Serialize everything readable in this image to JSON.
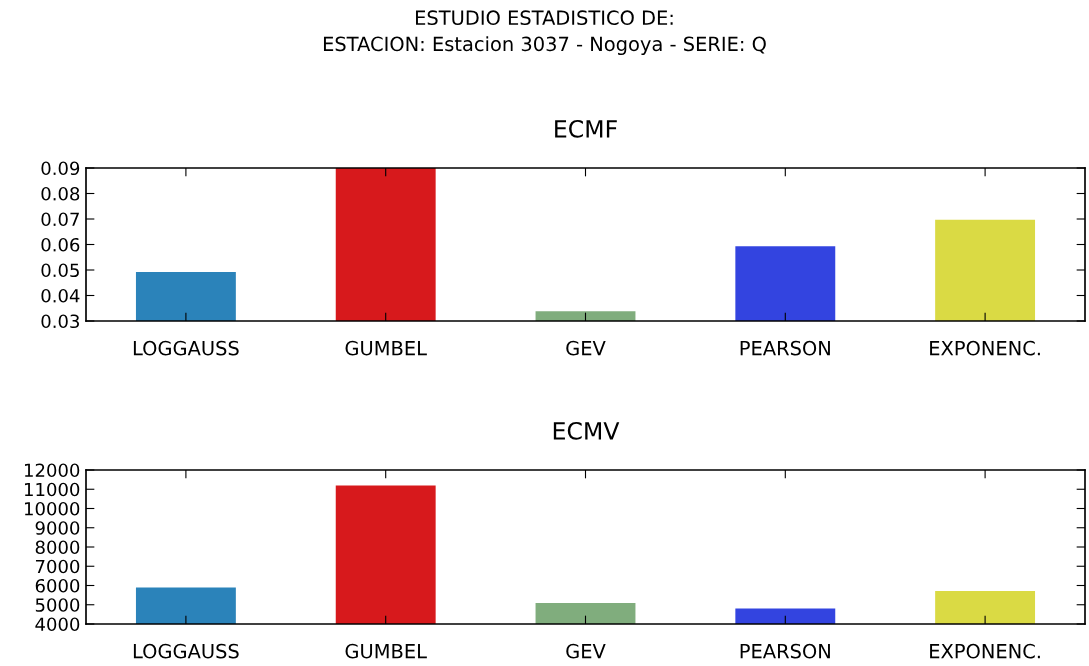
{
  "chart_data": [
    {
      "type": "bar",
      "title": "ECMF",
      "categories": [
        "LOGGAUSS",
        "GUMBEL",
        "GEV",
        "PEARSON",
        "EXPONENC."
      ],
      "values": [
        0.0492,
        0.09,
        0.0338,
        0.0593,
        0.0697
      ],
      "colors": [
        "#2b83ba",
        "#d7191c",
        "#80ad7d",
        "#3344e0",
        "#dada44"
      ],
      "ylim": [
        0.03,
        0.09
      ],
      "yticks": [
        {
          "value": 0.03,
          "label": "0.03"
        },
        {
          "value": 0.04,
          "label": "0.04"
        },
        {
          "value": 0.05,
          "label": "0.05"
        },
        {
          "value": 0.06,
          "label": "0.06"
        },
        {
          "value": 0.07,
          "label": "0.07"
        },
        {
          "value": 0.08,
          "label": "0.08"
        },
        {
          "value": 0.09,
          "label": "0.09"
        }
      ],
      "annotations": [
        "ESTUDIO ESTADISTICO DE:\nESTACION: Estacion 3037 - Nogoya - SERIE: Q"
      ]
    },
    {
      "type": "bar",
      "title": "ECMV",
      "categories": [
        "LOGGAUSS",
        "GUMBEL",
        "GEV",
        "PEARSON",
        "EXPONENC."
      ],
      "values": [
        5890,
        11200,
        5090,
        4800,
        5710
      ],
      "colors": [
        "#2b83ba",
        "#d7191c",
        "#80ad7d",
        "#3344e0",
        "#dada44"
      ],
      "ylim": [
        4000,
        12000
      ],
      "yticks": [
        4000,
        5000,
        6000,
        7000,
        8000,
        9000,
        10000,
        11000,
        12000
      ]
    }
  ]
}
